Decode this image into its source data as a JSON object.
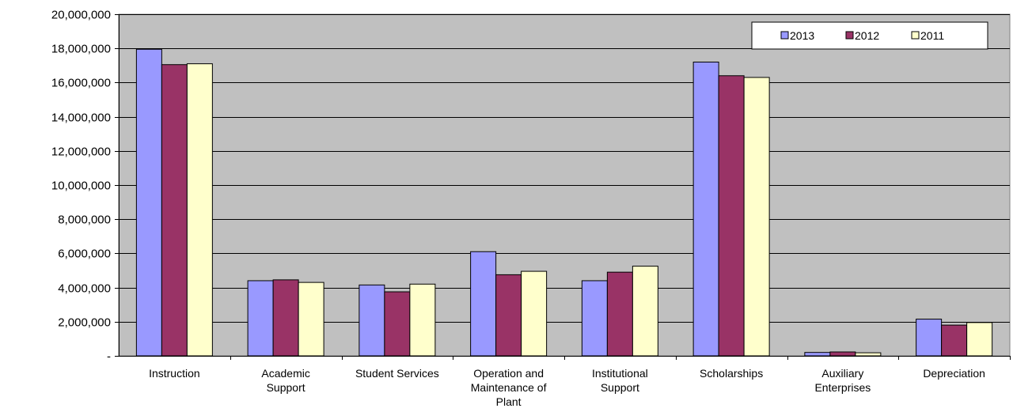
{
  "chart_data": {
    "type": "bar",
    "title": "",
    "xlabel": "",
    "ylabel": "",
    "ylim": [
      0,
      20000000
    ],
    "y_ticks": [
      0,
      2000000,
      4000000,
      6000000,
      8000000,
      10000000,
      12000000,
      14000000,
      16000000,
      18000000,
      20000000
    ],
    "y_tick_labels": [
      "-",
      "2,000,000",
      "4,000,000",
      "6,000,000",
      "8,000,000",
      "10,000,000",
      "12,000,000",
      "14,000,000",
      "16,000,000",
      "18,000,000",
      "20,000,000"
    ],
    "grid": true,
    "legend_position": "top-right",
    "plot_background": "#c0c0c0",
    "categories": [
      [
        "Instruction"
      ],
      [
        "Academic",
        "Support"
      ],
      [
        "Student Services"
      ],
      [
        "Operation and",
        "Maintenance of",
        "Plant"
      ],
      [
        "Institutional",
        "Support"
      ],
      [
        "Scholarships"
      ],
      [
        "Auxiliary",
        "Enterprises"
      ],
      [
        "Depreciation"
      ]
    ],
    "series": [
      {
        "name": "2013",
        "color": "#9999ff",
        "values": [
          17950000,
          4400000,
          4150000,
          6100000,
          4400000,
          17200000,
          200000,
          2150000
        ]
      },
      {
        "name": "2012",
        "color": "#993366",
        "values": [
          17050000,
          4450000,
          3750000,
          4750000,
          4900000,
          16400000,
          230000,
          1800000
        ]
      },
      {
        "name": "2011",
        "color": "#ffffcc",
        "values": [
          17100000,
          4300000,
          4200000,
          4950000,
          5250000,
          16300000,
          180000,
          1950000
        ]
      }
    ]
  }
}
